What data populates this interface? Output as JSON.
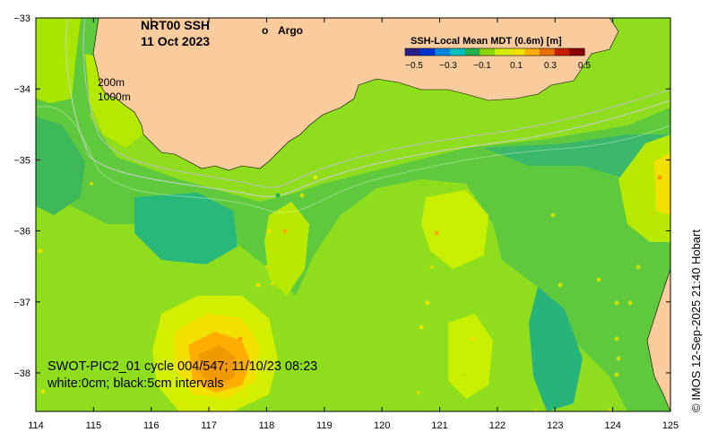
{
  "title": {
    "line1": "NRT00 SSH",
    "line2": "11 Oct 2023"
  },
  "legend": {
    "marker": "o",
    "label": "Argo",
    "marker_color": "#ff00ff"
  },
  "isobaths": {
    "shallow": "200m",
    "deep": "1000m"
  },
  "colorbar": {
    "title": "SSH-Local Mean MDT (0.6m) [m]",
    "ticks": [
      "−0.5",
      "−0.3",
      "−0.1",
      "0.1",
      "0.3",
      "0.5"
    ],
    "colors": [
      "#2a1f8a",
      "#0033cc",
      "#0088dd",
      "#00c0c0",
      "#22b14c",
      "#8fd400",
      "#d2ef00",
      "#f2e000",
      "#ffae00",
      "#e86e00",
      "#c81e00",
      "#8b0000"
    ]
  },
  "annotation": {
    "line1": "SWOT-PIC2_01 cycle 004/547; 11/10/23 08:23",
    "line2": "white:0cm; black:5cm intervals"
  },
  "credit": "© IMOS 12-Sep-2025 21:40 Hobart",
  "axes": {
    "x_ticks": [
      "114",
      "115",
      "116",
      "117",
      "118",
      "119",
      "120",
      "121",
      "122",
      "123",
      "124",
      "125"
    ],
    "y_ticks": [
      "−33",
      "−34",
      "−35",
      "−36",
      "−37",
      "−38"
    ]
  },
  "colors": {
    "land": "#facb9c",
    "ocean_base": "#8ede1e"
  }
}
